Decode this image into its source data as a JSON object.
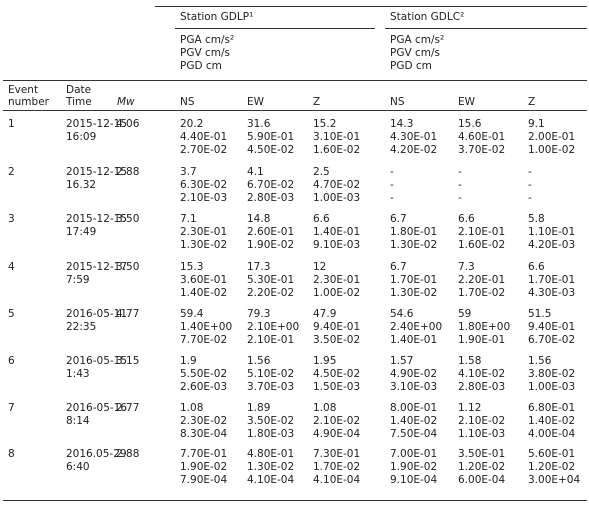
{
  "table": {
    "stations": [
      {
        "name": "Station GDLP¹",
        "units": [
          "PGA cm/s²",
          "PGV cm/s",
          "PGD cm"
        ]
      },
      {
        "name": "Station GDLC²",
        "units": [
          "PGA cm/s²",
          "PGV cm/s",
          "PGD cm"
        ]
      }
    ],
    "header": {
      "event": [
        "Event",
        "number"
      ],
      "datetime": [
        "Date",
        "Time"
      ],
      "mw": "Mw",
      "components": [
        "NS",
        "EW",
        "Z",
        "NS",
        "EW",
        "Z"
      ]
    },
    "rows": [
      {
        "event": "1",
        "date": "2015-12-15",
        "time": "16:09",
        "mw": "4.06",
        "cells": [
          [
            "20.2",
            "4.40E-01",
            "2.70E-02"
          ],
          [
            "31.6",
            "5.90E-01",
            "4.50E-02"
          ],
          [
            "15.2",
            "3.10E-01",
            "1.60E-02"
          ],
          [
            "14.3",
            "4.30E-01",
            "4.20E-02"
          ],
          [
            "15.6",
            "4.60E-01",
            "3.70E-02"
          ],
          [
            "9.1",
            "2.00E-01",
            "1.00E-02"
          ]
        ]
      },
      {
        "event": "2",
        "date": "2015-12-15",
        "time": "16.32",
        "mw": "2.88",
        "cells": [
          [
            "3.7",
            "6.30E-02",
            "2.10E-03"
          ],
          [
            "4.1",
            "6.70E-02",
            "2.80E-03"
          ],
          [
            "2.5",
            "4.70E-02",
            "1.00E-03"
          ],
          [
            "-",
            "-",
            "-"
          ],
          [
            "-",
            "-",
            "-"
          ],
          [
            "-",
            "-",
            "-"
          ]
        ]
      },
      {
        "event": "3",
        "date": "2015-12-15",
        "time": "17:49",
        "mw": "3.50",
        "cells": [
          [
            "7.1",
            "2.30E-01",
            "1.30E-02"
          ],
          [
            "14.8",
            "2.60E-01",
            "1.90E-02"
          ],
          [
            "6.6",
            "1.40E-01",
            "9.10E-03"
          ],
          [
            "6.7",
            "1.80E-01",
            "1.30E-02"
          ],
          [
            "6.6",
            "2.10E-01",
            "1.60E-02"
          ],
          [
            "5.8",
            "1.10E-01",
            "4.20E-03"
          ]
        ]
      },
      {
        "event": "4",
        "date": "2015-12-17",
        "time": "7:59",
        "mw": "3.50",
        "cells": [
          [
            "15.3",
            "3.60E-01",
            "1.40E-02"
          ],
          [
            "17.3",
            "5.30E-01",
            "2.20E-02"
          ],
          [
            "12",
            "2.30E-01",
            "1.00E-02"
          ],
          [
            "6.7",
            "1.70E-01",
            "1.30E-02"
          ],
          [
            "7.3",
            "2.20E-01",
            "1.70E-02"
          ],
          [
            "6.6",
            "1.70E-01",
            "4.30E-03"
          ]
        ]
      },
      {
        "event": "5",
        "date": "2016-05-11",
        "time": "22:35",
        "mw": "4.77",
        "cells": [
          [
            "59.4",
            "1.40E+00",
            "7.70E-02"
          ],
          [
            "79.3",
            "2.10E+00",
            "2.10E-01"
          ],
          [
            "47.9",
            "9.40E-01",
            "3.50E-02"
          ],
          [
            "54.6",
            "2.40E+00",
            "1.40E-01"
          ],
          [
            "59",
            "1.80E+00",
            "1.90E-01"
          ],
          [
            "51.5",
            "9.40E-01",
            "6.70E-02"
          ]
        ]
      },
      {
        "event": "6",
        "date": "2016-05-15",
        "time": "1:43",
        "mw": "3.15",
        "cells": [
          [
            "1.9",
            "5.50E-02",
            "2.60E-03"
          ],
          [
            "1.56",
            "5.10E-02",
            "3.70E-03"
          ],
          [
            "1.95",
            "4.50E-02",
            "1.50E-03"
          ],
          [
            "1.57",
            "4.90E-02",
            "3.10E-03"
          ],
          [
            "1.58",
            "4.10E-02",
            "2.80E-03"
          ],
          [
            "1.56",
            "3.80E-02",
            "1.00E-03"
          ]
        ]
      },
      {
        "event": "7",
        "date": "2016-05-16",
        "time": "8:14",
        "mw": "2.77",
        "cells": [
          [
            "1.08",
            "2.30E-02",
            "8.30E-04"
          ],
          [
            "1.89",
            "3.50E-02",
            "1.80E-03"
          ],
          [
            "1.08",
            "2.10E-02",
            "4.90E-04"
          ],
          [
            "8.00E-01",
            "1.40E-02",
            "7.50E-04"
          ],
          [
            "1.12",
            "2.10E-02",
            "1.10E-03"
          ],
          [
            "6.80E-01",
            "1.40E-02",
            "4.00E-04"
          ]
        ]
      },
      {
        "event": "8",
        "date": "2016.05-29",
        "time": "6:40",
        "mw": "2.88",
        "cells": [
          [
            "7.70E-01",
            "1.90E-02",
            "7.90E-04"
          ],
          [
            "4.80E-01",
            "1.30E-02",
            "4.10E-04"
          ],
          [
            "7.30E-01",
            "1.70E-02",
            "4.10E-04"
          ],
          [
            "7.00E-01",
            "1.90E-02",
            "9.10E-04"
          ],
          [
            "3.50E-01",
            "1.20E-02",
            "6.00E-04"
          ],
          [
            "5.60E-01",
            "1.20E-02",
            "3.00E+04"
          ]
        ]
      }
    ]
  }
}
